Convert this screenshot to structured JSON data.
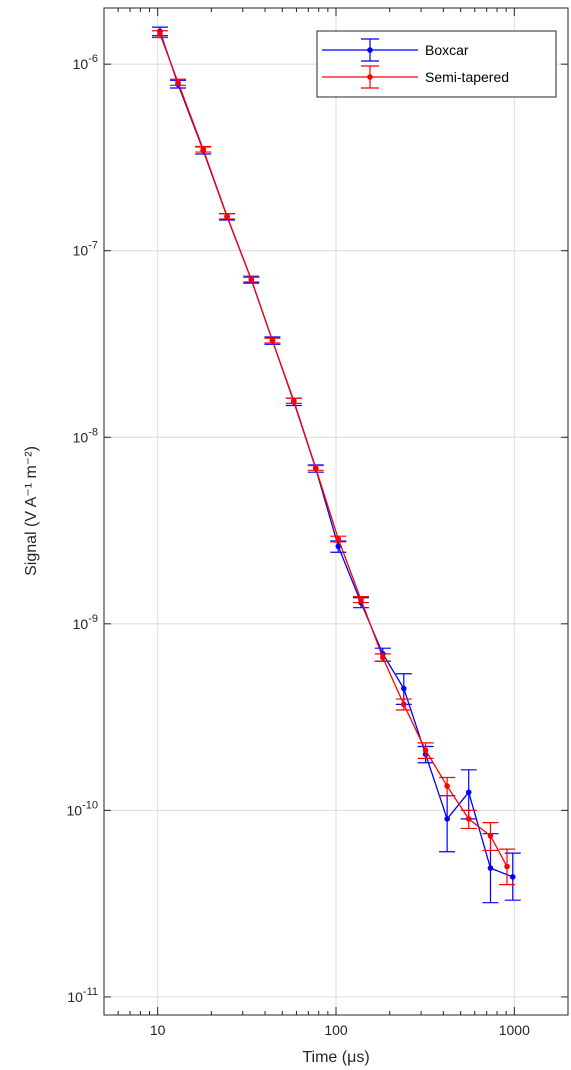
{
  "chart_data": {
    "type": "line",
    "xlabel": "Time (μs)",
    "ylabel": "Signal (V A⁻¹ m⁻²)",
    "xscale": "log",
    "yscale": "log",
    "xlim": [
      5,
      2000
    ],
    "ylim": [
      8e-12,
      2e-06
    ],
    "x_ticks": [
      10,
      100,
      1000
    ],
    "x_tick_labels": [
      "10",
      "100",
      "1000"
    ],
    "y_ticks": [
      1e-11,
      1e-10,
      1e-09,
      1e-08,
      1e-07,
      1e-06
    ],
    "y_tick_labels": [
      {
        "base": "10",
        "exp": "-11"
      },
      {
        "base": "10",
        "exp": "-10"
      },
      {
        "base": "10",
        "exp": "-9"
      },
      {
        "base": "10",
        "exp": "-8"
      },
      {
        "base": "10",
        "exp": "-7"
      },
      {
        "base": "10",
        "exp": "-6"
      }
    ],
    "grid": true,
    "legend_position": "top-right",
    "series": [
      {
        "name": "Boxcar",
        "color": "#0000ff",
        "x": [
          10.3,
          13.0,
          18.0,
          24.5,
          33.5,
          44.0,
          58.0,
          77.0,
          103,
          138,
          183,
          240,
          318,
          420,
          555,
          735,
          980
        ],
        "y": [
          1.5e-06,
          7.8e-07,
          3.45e-07,
          1.52e-07,
          7e-08,
          3.3e-08,
          1.55e-08,
          6.8e-09,
          2.6e-09,
          1.3e-09,
          6.9e-10,
          4.5e-10,
          2e-10,
          9e-11,
          1.25e-10,
          4.9e-11,
          4.4e-11
        ],
        "err_low": [
          1.42e-06,
          7.45e-07,
          3.3e-07,
          1.46e-07,
          6.7e-08,
          3.15e-08,
          1.48e-08,
          6.5e-09,
          2.42e-09,
          1.22e-09,
          6.3e-10,
          3.7e-10,
          1.8e-10,
          6e-11,
          9e-11,
          3.2e-11,
          3.3e-11
        ],
        "err_high": [
          1.58e-06,
          8.2e-07,
          3.6e-07,
          1.58e-07,
          7.3e-08,
          3.45e-08,
          1.62e-08,
          7.1e-09,
          2.78e-09,
          1.38e-09,
          7.4e-10,
          5.4e-10,
          2.2e-10,
          1.2e-10,
          1.65e-10,
          7.5e-11,
          5.9e-11
        ]
      },
      {
        "name": "Semi-tapered",
        "color": "#ff0000",
        "x": [
          10.3,
          13.0,
          18.0,
          24.5,
          33.5,
          44.0,
          58.0,
          77.0,
          103,
          138,
          183,
          240,
          318,
          420,
          555,
          735,
          910
        ],
        "y": [
          1.45e-06,
          8e-07,
          3.5e-07,
          1.53e-07,
          7e-08,
          3.3e-08,
          1.57e-08,
          6.85e-09,
          2.85e-09,
          1.35e-09,
          6.6e-10,
          3.7e-10,
          2.1e-10,
          1.35e-10,
          9e-11,
          7.3e-11,
          5e-11
        ],
        "err_low": [
          1.39e-06,
          7.7e-07,
          3.38e-07,
          1.48e-07,
          6.8e-08,
          3.2e-08,
          1.52e-08,
          6.65e-09,
          2.75e-09,
          1.3e-09,
          6.3e-10,
          3.45e-10,
          1.9e-10,
          1.2e-10,
          8e-11,
          6.1e-11,
          4e-11
        ],
        "err_high": [
          1.51e-06,
          8.3e-07,
          3.62e-07,
          1.58e-07,
          7.2e-08,
          3.4e-08,
          1.62e-08,
          7.05e-09,
          2.95e-09,
          1.4e-09,
          6.9e-10,
          3.95e-10,
          2.3e-10,
          1.5e-10,
          1e-10,
          8.6e-11,
          6.2e-11
        ]
      }
    ]
  }
}
